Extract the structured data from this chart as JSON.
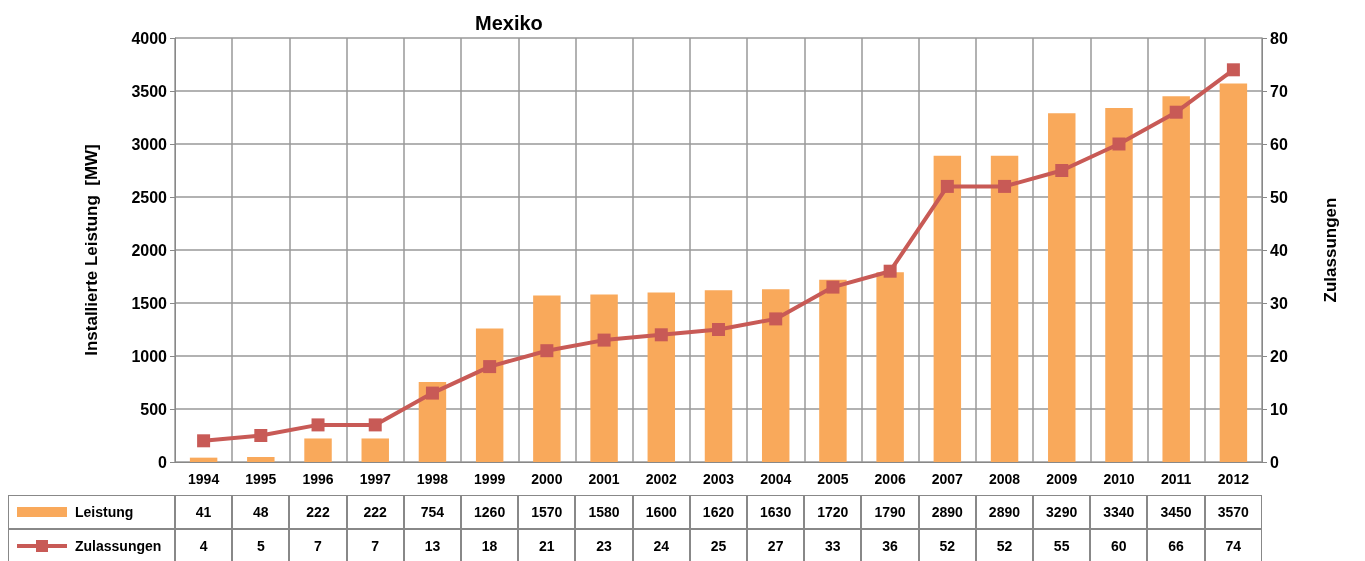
{
  "chart_data": {
    "type": "bar",
    "title": "Mexiko",
    "ylabel": "Installierte Leistung  [MW]",
    "y2label": "Zulassungen",
    "categories": [
      "1994",
      "1995",
      "1996",
      "1997",
      "1998",
      "1999",
      "2000",
      "2001",
      "2002",
      "2003",
      "2004",
      "2005",
      "2006",
      "2007",
      "2008",
      "2009",
      "2010",
      "2011",
      "2012"
    ],
    "series": [
      {
        "name": "Leistung",
        "color": "#f9a95b",
        "values": [
          41,
          48,
          222,
          222,
          754,
          1260,
          1570,
          1580,
          1600,
          1620,
          1630,
          1720,
          1790,
          2890,
          2890,
          3290,
          3340,
          3450,
          3570
        ]
      },
      {
        "name": "Zulassungen",
        "type": "line",
        "axis": "y2",
        "color": "#c85a56",
        "marker": "square",
        "values": [
          4,
          5,
          7,
          7,
          13,
          18,
          21,
          23,
          24,
          25,
          27,
          33,
          36,
          52,
          52,
          55,
          60,
          66,
          74
        ]
      }
    ],
    "ylim": [
      0,
      4000
    ],
    "yticks": [
      0,
      500,
      1000,
      1500,
      2000,
      2500,
      3000,
      3500,
      4000
    ],
    "y2lim": [
      0,
      80
    ],
    "y2ticks": [
      0,
      10,
      20,
      30,
      40,
      50,
      60,
      70,
      80
    ],
    "grid": true,
    "legend": "bottom",
    "data_labels": true
  }
}
